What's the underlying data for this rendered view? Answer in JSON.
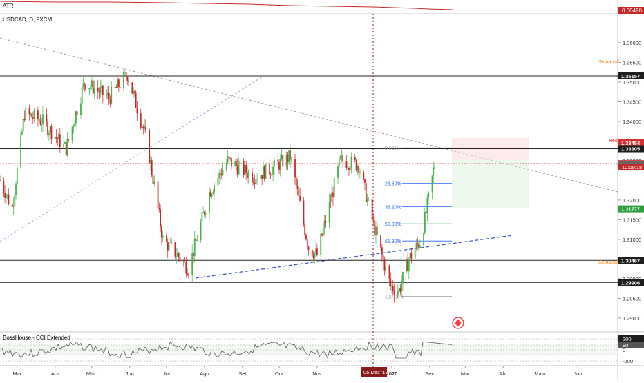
{
  "atr_panel": {
    "title": "ATR",
    "value_label": "0.00498"
  },
  "main_panel": {
    "title": "USDCAD, D, FXCM"
  },
  "cci_panel": {
    "title": "BossHouse - CCI Extended",
    "ticks": [
      "200",
      "90",
      "0",
      "-200"
    ]
  },
  "crosshair_label": "05 Dez '19",
  "countdown_label": "10:09:18",
  "colors": {
    "bull": "#4caf50",
    "bear": "#c62828",
    "price_line": "#c62828",
    "fib_label": "#2962ff",
    "annotation": "#ff7f00",
    "cci_line": "#555555"
  },
  "annotations": {
    "semanal_top": "Semanal",
    "semanal_bottom": "Semanal",
    "res": "Res"
  },
  "fib_levels": [
    {
      "label": "0.00%",
      "price": 1.3333
    },
    {
      "label": "23.60%",
      "price": 1.3243
    },
    {
      "label": "38.20%",
      "price": 1.3183
    },
    {
      "label": "50.00%",
      "price": 1.314
    },
    {
      "label": "61.80%",
      "price": 1.3096
    },
    {
      "label": "100.00%",
      "price": 1.2955
    }
  ],
  "price_axis_ticks": [
    "1.36000",
    "1.35500",
    "1.35000",
    "1.34500",
    "1.34000",
    "1.33500",
    "1.33000",
    "1.32000",
    "1.31500",
    "1.31000",
    "1.30500",
    "1.30000",
    "1.29500",
    "1.29000"
  ],
  "price_badges": [
    {
      "label": "1.35157",
      "price": 1.35157,
      "style": "black"
    },
    {
      "label": "1.33454",
      "price": 1.33454,
      "style": "red"
    },
    {
      "label": "1.33305",
      "price": 1.33305,
      "style": "black"
    },
    {
      "label": "1.32925",
      "price": 1.32925,
      "style": "red"
    },
    {
      "label": "1.32895",
      "price": 1.32895,
      "style": "gray"
    },
    {
      "label": "1.31777",
      "price": 1.31777,
      "style": "green"
    },
    {
      "label": "1.30467",
      "price": 1.30467,
      "style": "black"
    },
    {
      "label": "1.29906",
      "price": 1.29906,
      "style": "black"
    }
  ],
  "time_axis_ticks": [
    "Mar",
    "Abr",
    "Maio",
    "Jun",
    "Jul",
    "Ago",
    "Set",
    "Out",
    "Nov",
    "2020",
    "Fev",
    "Mar",
    "Abr",
    "Maio",
    "Jun"
  ],
  "chart_data": {
    "type": "candlestick",
    "title": "USDCAD, D, FXCM",
    "y_range": [
      1.287,
      1.367
    ],
    "horizontal_levels": [
      1.35157,
      1.33305,
      1.30467,
      1.29906
    ],
    "current_price": 1.32925,
    "position_box": {
      "entry": 1.32925,
      "stop": 1.33454,
      "target": 1.31777
    },
    "anchors": [
      [
        "2019-02-15",
        1.325
      ],
      [
        "2019-02-25",
        1.318
      ],
      [
        "2019-03-07",
        1.342
      ],
      [
        "2019-03-22",
        1.34
      ],
      [
        "2019-04-10",
        1.333
      ],
      [
        "2019-04-25",
        1.35
      ],
      [
        "2019-05-15",
        1.346
      ],
      [
        "2019-05-30",
        1.352
      ],
      [
        "2019-06-15",
        1.335
      ],
      [
        "2019-06-28",
        1.31
      ],
      [
        "2019-07-10",
        1.306
      ],
      [
        "2019-07-19",
        1.3025
      ],
      [
        "2019-08-05",
        1.322
      ],
      [
        "2019-08-20",
        1.33
      ],
      [
        "2019-09-10",
        1.326
      ],
      [
        "2019-09-25",
        1.328
      ],
      [
        "2019-10-10",
        1.331
      ],
      [
        "2019-10-25",
        1.308
      ],
      [
        "2019-11-01",
        1.306
      ],
      [
        "2019-11-20",
        1.33
      ],
      [
        "2019-12-05",
        1.329
      ],
      [
        "2019-12-15",
        1.316
      ],
      [
        "2019-12-31",
        1.298
      ],
      [
        "2020-01-07",
        1.297
      ],
      [
        "2020-01-15",
        1.305
      ],
      [
        "2020-01-25",
        1.31
      ],
      [
        "2020-02-05",
        1.329
      ]
    ]
  }
}
